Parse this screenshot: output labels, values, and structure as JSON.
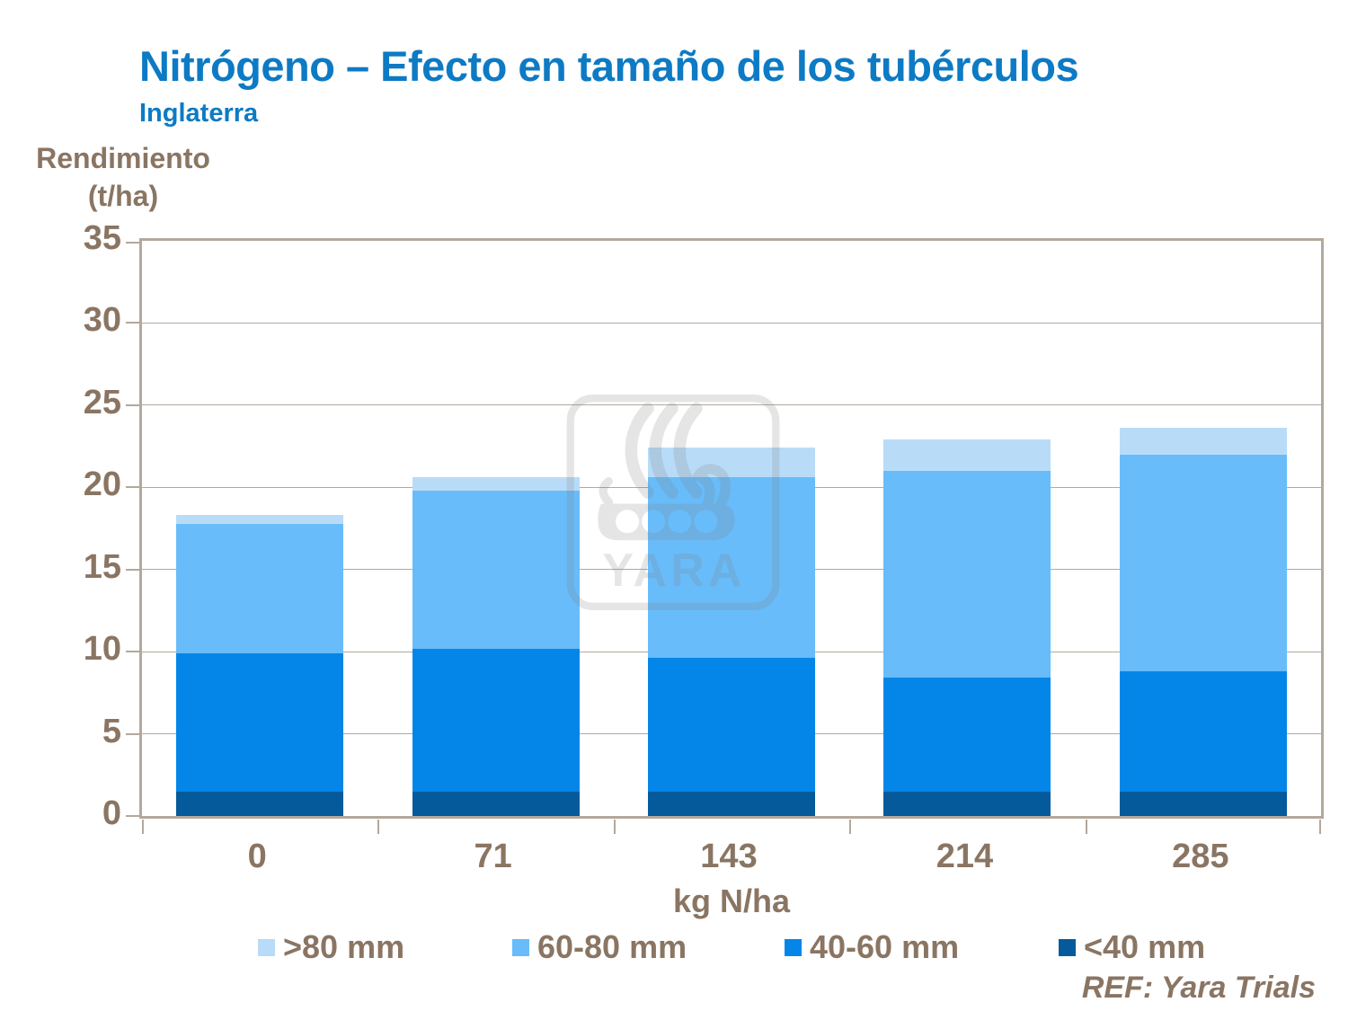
{
  "slide": {
    "title": "Nitrógeno – Efecto en tamaño de los tubérculos",
    "subtitle": "Inglaterra",
    "ref": "REF: Yara Trials"
  },
  "colors": {
    "title_blue": "#0d7ac4",
    "axis_text_brown": "#8a7563",
    "grid_tan": "#b3a89c"
  },
  "watermark": {
    "text": "YARA"
  },
  "chart_data": {
    "type": "bar",
    "stacked": true,
    "title": "Nitrógeno – Efecto en tamaño de los tubérculos",
    "subtitle": "Inglaterra",
    "categories": [
      "0",
      "71",
      "143",
      "214",
      "285"
    ],
    "xlabel": "kg N/ha",
    "ylabel": "Rendimiento (t/ha)",
    "ylabel_lines": [
      "Rendimiento",
      "(t/ha)"
    ],
    "ylim": [
      0,
      35
    ],
    "yticks": [
      0,
      5,
      10,
      15,
      20,
      25,
      30,
      35
    ],
    "grid": true,
    "legend_position": "bottom",
    "legend_display_order": [
      3,
      2,
      1,
      0
    ],
    "series": [
      {
        "name": "<40 mm",
        "color": "#055a9b",
        "values": [
          1.5,
          1.5,
          1.5,
          1.5,
          1.5
        ]
      },
      {
        "name": "40-60 mm",
        "color": "#0486e9",
        "values": [
          8.4,
          8.7,
          8.1,
          6.9,
          7.3
        ]
      },
      {
        "name": "60-80 mm",
        "color": "#68bcf9",
        "values": [
          7.9,
          9.6,
          11.0,
          12.6,
          13.2
        ]
      },
      {
        "name": ">80 mm",
        "color": "#b8dcf8",
        "values": [
          0.5,
          0.8,
          1.8,
          1.9,
          1.6
        ]
      }
    ],
    "totals": [
      18.3,
      20.6,
      22.4,
      22.9,
      23.6
    ]
  }
}
